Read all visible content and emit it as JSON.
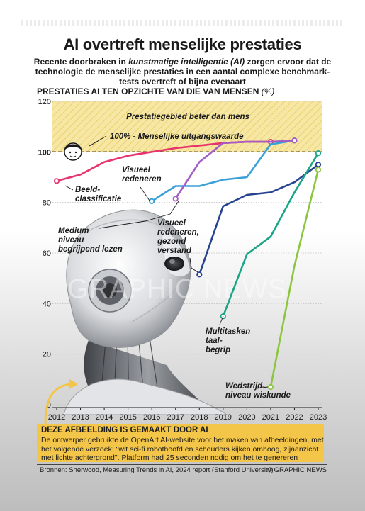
{
  "header": {
    "title": "AI overtreft menselijke prestaties",
    "subtitle_pre": "Recente doorbraken in ",
    "subtitle_em": "kunstmatige intelligentie (AI)",
    "subtitle_post": " zorgen ervoor dat de technologie de menselijke prestaties in een aantal complexe benchmark-tests overtreft of bijna evenaart"
  },
  "chart_title": {
    "main": "PRESTATIES AI TEN OPZICHTE VAN DIE VAN MENSEN",
    "unit": "(%)"
  },
  "colors": {
    "beeldclassificatie": "#e8336d",
    "visueel_redeneren": "#3aa0d8",
    "medium_niveau_lezen": "#a45cc4",
    "visueel_redeneren_gezond_verstand": "#26438f",
    "multitasken_taalbegrip": "#1aa589",
    "wedstrijdniveau_wiskunde": "#8cc63f",
    "zone_fill": "#f6e7a4",
    "highlight_box": "#f3c64a"
  },
  "chart_data": {
    "type": "line",
    "ylim": [
      0,
      120
    ],
    "yticks": [
      "0",
      "20",
      "40",
      "60",
      "80",
      "100",
      "120"
    ],
    "x": [
      "2012",
      "2013",
      "2014",
      "2015",
      "2016",
      "2017",
      "2018",
      "2019",
      "2020",
      "2021",
      "2022",
      "2023"
    ],
    "baseline": {
      "value": 100,
      "label": "100% - Menselijke uitgangswaarde"
    },
    "zone": {
      "from": 100,
      "to": 120,
      "label": "Prestatiegebied beter dan mens"
    },
    "series": [
      {
        "name": "Beeld-classificatie",
        "label_lines": [
          "Beeld-",
          "classificatie"
        ],
        "color_key": "beeldclassificatie",
        "points": [
          [
            2012,
            88.5
          ],
          [
            2013,
            91
          ],
          [
            2014,
            96
          ],
          [
            2015,
            98.5
          ],
          [
            2016,
            100
          ],
          [
            2017,
            101.5
          ],
          [
            2018,
            102.5
          ],
          [
            2019,
            103.5
          ],
          [
            2020,
            104
          ],
          [
            2021,
            104
          ]
        ]
      },
      {
        "name": "Visueel redeneren",
        "label_lines": [
          "Visueel",
          "redeneren"
        ],
        "color_key": "visueel_redeneren",
        "points": [
          [
            2016,
            80.5
          ],
          [
            2017,
            86.5
          ],
          [
            2018,
            86.5
          ],
          [
            2019,
            89
          ],
          [
            2020,
            90
          ],
          [
            2021,
            103
          ],
          [
            2022,
            104.5
          ]
        ]
      },
      {
        "name": "Medium niveau begrijpend lezen",
        "label_lines": [
          "Medium",
          "niveau",
          "begrijpend lezen"
        ],
        "color_key": "medium_niveau_lezen",
        "points": [
          [
            2017,
            81.5
          ],
          [
            2018,
            96
          ],
          [
            2019,
            103.5
          ],
          [
            2020,
            104
          ],
          [
            2021,
            104
          ],
          [
            2022,
            104.5
          ]
        ]
      },
      {
        "name": "Visueel redeneren, gezond verstand",
        "label_lines": [
          "Visueel",
          "redeneren,",
          "gezond",
          "verstand"
        ],
        "color_key": "visueel_redeneren_gezond_verstand",
        "points": [
          [
            2018,
            51.5
          ],
          [
            2019,
            78.5
          ],
          [
            2020,
            83
          ],
          [
            2021,
            84
          ],
          [
            2022,
            88
          ],
          [
            2023,
            95
          ]
        ]
      },
      {
        "name": "Multitasken taalbegrip",
        "label_lines": [
          "Multitasken",
          "taal-",
          "begrip"
        ],
        "color_key": "multitasken_taalbegrip",
        "points": [
          [
            2019,
            35
          ],
          [
            2020,
            59.5
          ],
          [
            2021,
            66.5
          ],
          [
            2022,
            84
          ],
          [
            2023,
            99.5
          ]
        ]
      },
      {
        "name": "Wedstrijdniveau wiskunde",
        "label_lines": [
          "Wedstrijd-",
          "niveau wiskunde"
        ],
        "color_key": "wedstrijdniveau_wiskunde",
        "points": [
          [
            2021,
            7
          ],
          [
            2022,
            55
          ],
          [
            2023,
            93
          ]
        ]
      }
    ]
  },
  "watermark": "GRAPHIC NEWS",
  "ai_note": {
    "title": "DEZE AFBEELDING IS GEMAAKT DOOR AI",
    "text": "De ontwerper gebruikte de OpenArt AI-website voor het maken van afbeeldingen, met het volgende verzoek: \"wit sci-fi robothoofd en schouders kijken omhoog, zijaanzicht met lichte achtergrond\". Platform had 25 seconden nodig om het te genereren"
  },
  "footer": {
    "sources": "Bronnen: Sherwood, Measuring Trends in AI, 2024 report (Stanford University)",
    "credit": "© GRAPHIC NEWS"
  }
}
